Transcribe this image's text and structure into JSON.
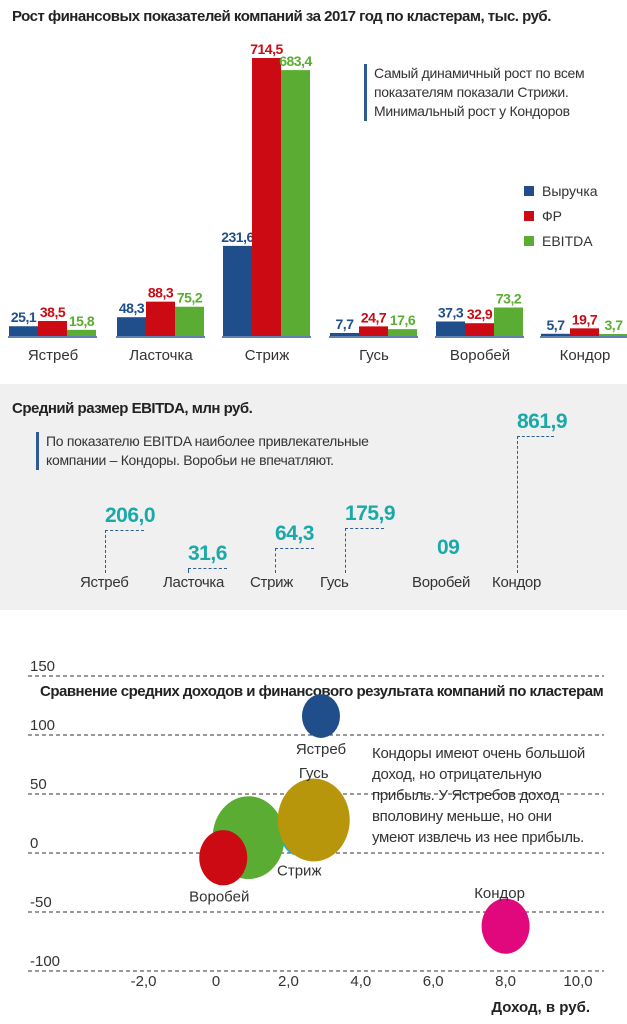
{
  "chart_data": [
    {
      "type": "bar",
      "title": "Рост финансовых показателей компаний за 2017 год по кластерам, тыс. руб.",
      "note": "Самый динамичный рост по всем показателям показали Стрижи. Минимальный рост у Кондоров",
      "note_lines": [
        "Самый динамичный рост по всем",
        "показателям показали Стрижи.",
        "Минимальный рост у Кондоров"
      ],
      "categories": [
        "Ястреб",
        "Ласточка",
        "Стриж",
        "Гусь",
        "Воробей",
        "Кондор"
      ],
      "series": [
        {
          "name": "Выручка",
          "color": "#1f4e8a",
          "values": [
            25.1,
            48.3,
            231.6,
            7.7,
            37.3,
            5.7
          ],
          "labels": [
            "25,1",
            "48,3",
            "231,6",
            "7,7",
            "37,3",
            "5,7"
          ]
        },
        {
          "name": "ФР",
          "color": "#cc0a14",
          "values": [
            38.5,
            88.3,
            714.5,
            24.7,
            32.9,
            19.7
          ],
          "labels": [
            "38,5",
            "88,3",
            "714,5",
            "24,7",
            "32,9",
            "19,7"
          ]
        },
        {
          "name": "EBITDA",
          "color": "#5aad32",
          "values": [
            15.8,
            75.2,
            683.4,
            17.6,
            73.2,
            3.7
          ],
          "labels": [
            "15,8",
            "75,2",
            "683,4",
            "17,6",
            "73,2",
            "3,7"
          ]
        }
      ],
      "legend": "right"
    },
    {
      "type": "bar",
      "title": "Средний размер EBITDA, млн руб.",
      "note_lines": [
        "По показателю EBITDA наиболее привлекательные",
        "компании – Кондоры. Воробьи не впечатляют."
      ],
      "color": "#1aa9a9",
      "categories": [
        "Ястреб",
        "Ласточка",
        "Стриж",
        "Гусь",
        "Воробей",
        "Кондор"
      ],
      "values": [
        206.0,
        31.6,
        64.3,
        175.9,
        9,
        861.9
      ],
      "labels": [
        "206,0",
        "31,6",
        "64,3",
        "175,9",
        "09",
        "861,9"
      ]
    },
    {
      "type": "scatter",
      "title": "Сравнение средних доходов и финансового результата компаний по кластерам",
      "xlabel": "Доход, в руб.",
      "ylabel": "",
      "xlim": [
        -3,
        10.5
      ],
      "ylim": [
        -100,
        150
      ],
      "grid": true,
      "x_ticks": [
        "-2,0",
        "0",
        "2,0",
        "4,0",
        "6,0",
        "8,0",
        "10,0"
      ],
      "x_tick_values": [
        -2,
        0,
        2,
        4,
        6,
        8,
        10
      ],
      "y_ticks": [
        "150",
        "100",
        "50",
        "0",
        "-50",
        "-100"
      ],
      "y_tick_values": [
        150,
        100,
        50,
        0,
        -50,
        -100
      ],
      "note_lines": [
        "Кондоры имеют очень большой",
        "доход, но отрицательную",
        "прибыль. У Ястребов доход",
        "вполовину меньше, но они",
        "умеют извлечь из нее прибыль."
      ],
      "points": [
        {
          "name": "Ястреб",
          "x": 2.9,
          "y": 116,
          "size": 19,
          "color": "#1f4e8a",
          "labeled": true
        },
        {
          "name": "Стриж",
          "x": 2.3,
          "y": 15,
          "size": 18,
          "color": "#1ab3c0",
          "labeled": true
        },
        {
          "name": "Ласточка",
          "x": 0.9,
          "y": 13,
          "size": 36,
          "color": "#5aad32",
          "labeled": false
        },
        {
          "name": "Гусь",
          "x": 2.7,
          "y": 28,
          "size": 36,
          "color": "#b8960c",
          "labeled": true
        },
        {
          "name": "Воробей",
          "x": 0.2,
          "y": -4,
          "size": 24,
          "color": "#cc0a14",
          "labeled": true
        },
        {
          "name": "Кондор",
          "x": 8.0,
          "y": -62,
          "size": 24,
          "color": "#e0087c",
          "labeled": true
        }
      ]
    }
  ]
}
